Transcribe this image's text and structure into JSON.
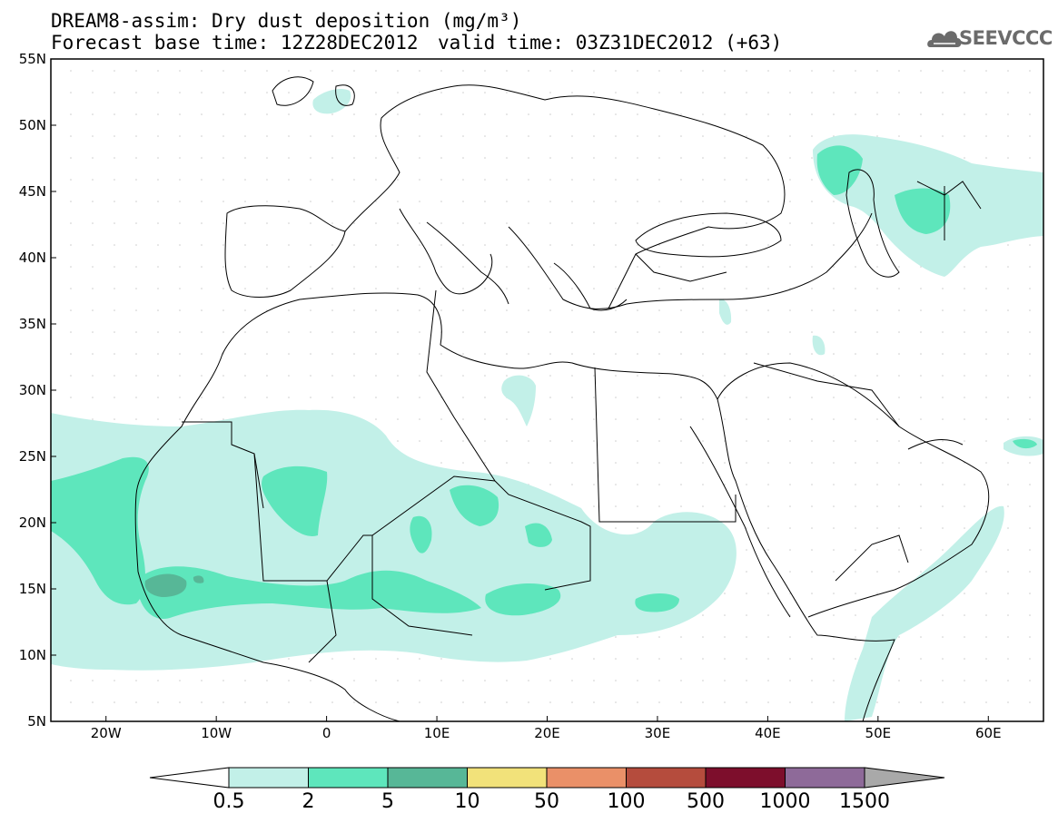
{
  "header": {
    "title_line1": "DREAM8-assim: Dry dust deposition (mg/m³)",
    "title_line2": "Forecast base time: 12Z28DEC2012",
    "valid_time": "valid time: 03Z31DEC2012 (+63)",
    "logo_text": "SEEVCCC"
  },
  "map": {
    "lon_range": [
      -25,
      65
    ],
    "lat_range": [
      5,
      55
    ],
    "lat_labels": [
      "55N",
      "50N",
      "45N",
      "40N",
      "35N",
      "30N",
      "25N",
      "20N",
      "15N",
      "10N",
      "5N"
    ],
    "lon_labels": [
      "20W",
      "10W",
      "0",
      "10E",
      "20E",
      "30E",
      "40E",
      "50E",
      "60E"
    ]
  },
  "legend": {
    "labels": [
      "0.5",
      "2",
      "5",
      "10",
      "50",
      "100",
      "500",
      "1000",
      "1500"
    ],
    "colors": [
      "#c2f0e8",
      "#5ee6bc",
      "#57b797",
      "#f2e27a",
      "#ea9068",
      "#b54c3d",
      "#7d0e2c",
      "#8e6a99",
      "#a9a9a9"
    ]
  }
}
